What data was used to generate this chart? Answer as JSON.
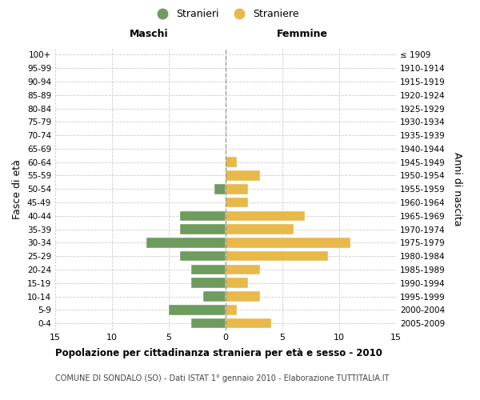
{
  "age_groups": [
    "100+",
    "95-99",
    "90-94",
    "85-89",
    "80-84",
    "75-79",
    "70-74",
    "65-69",
    "60-64",
    "55-59",
    "50-54",
    "45-49",
    "40-44",
    "35-39",
    "30-34",
    "25-29",
    "20-24",
    "15-19",
    "10-14",
    "5-9",
    "0-4"
  ],
  "birth_years": [
    "≤ 1909",
    "1910-1914",
    "1915-1919",
    "1920-1924",
    "1925-1929",
    "1930-1934",
    "1935-1939",
    "1940-1944",
    "1945-1949",
    "1950-1954",
    "1955-1959",
    "1960-1964",
    "1965-1969",
    "1970-1974",
    "1975-1979",
    "1980-1984",
    "1985-1989",
    "1990-1994",
    "1995-1999",
    "2000-2004",
    "2005-2009"
  ],
  "males": [
    0,
    0,
    0,
    0,
    0,
    0,
    0,
    0,
    0,
    0,
    1,
    0,
    4,
    4,
    7,
    4,
    3,
    3,
    2,
    5,
    3
  ],
  "females": [
    0,
    0,
    0,
    0,
    0,
    0,
    0,
    0,
    1,
    3,
    2,
    2,
    7,
    6,
    11,
    9,
    3,
    2,
    3,
    1,
    4
  ],
  "male_color": "#6e9b5e",
  "female_color": "#e8b84b",
  "xlim": 15,
  "title": "Popolazione per cittadinanza straniera per età e sesso - 2010",
  "subtitle": "COMUNE DI SONDALO (SO) - Dati ISTAT 1° gennaio 2010 - Elaborazione TUTTITALIA.IT",
  "ylabel_left": "Fasce di età",
  "ylabel_right": "Anni di nascita",
  "legend_male": "Stranieri",
  "legend_female": "Straniere",
  "maschi_label": "Maschi",
  "femmine_label": "Femmine",
  "grid_color": "#cccccc",
  "bg_color": "#ffffff",
  "bar_edge_color": "#ffffff"
}
